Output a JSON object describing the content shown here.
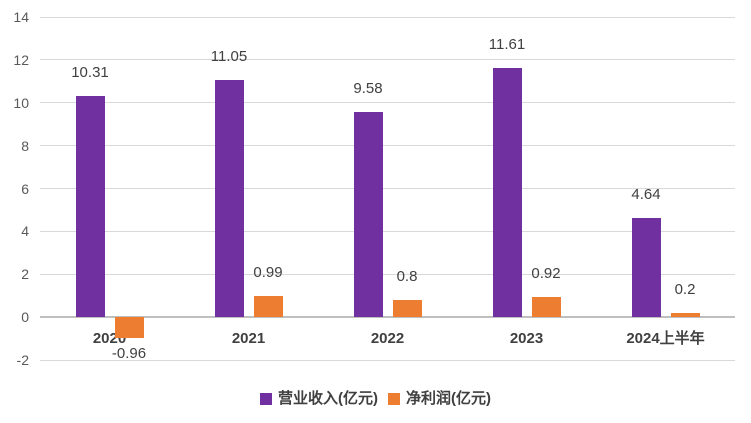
{
  "chart_data": {
    "type": "bar",
    "title": "",
    "categories": [
      "2020",
      "2021",
      "2022",
      "2023",
      "2024上半年"
    ],
    "series": [
      {
        "name": "营业收入(亿元)",
        "color": "#7030A0",
        "values": [
          10.31,
          11.05,
          9.58,
          11.61,
          4.64
        ]
      },
      {
        "name": "净利润(亿元)",
        "color": "#ED7D31",
        "values": [
          -0.96,
          0.99,
          0.8,
          0.92,
          0.2
        ]
      }
    ],
    "data_labels": [
      [
        "10.31",
        "11.05",
        "9.58",
        "11.61",
        "4.64"
      ],
      [
        "-0.96",
        "0.99",
        "0.8",
        "0.92",
        "0.2"
      ]
    ],
    "ylim": [
      -2,
      14
    ],
    "yticks": [
      14,
      12,
      10,
      8,
      6,
      4,
      2,
      0,
      -2
    ],
    "grid": true,
    "legend_position": "bottom"
  },
  "colors": {
    "background": "#FFFFFF",
    "gridline": "#D9D9D9",
    "axis_line": "#BFBFBF",
    "tick_text": "#595959",
    "label_text": "#404040"
  }
}
